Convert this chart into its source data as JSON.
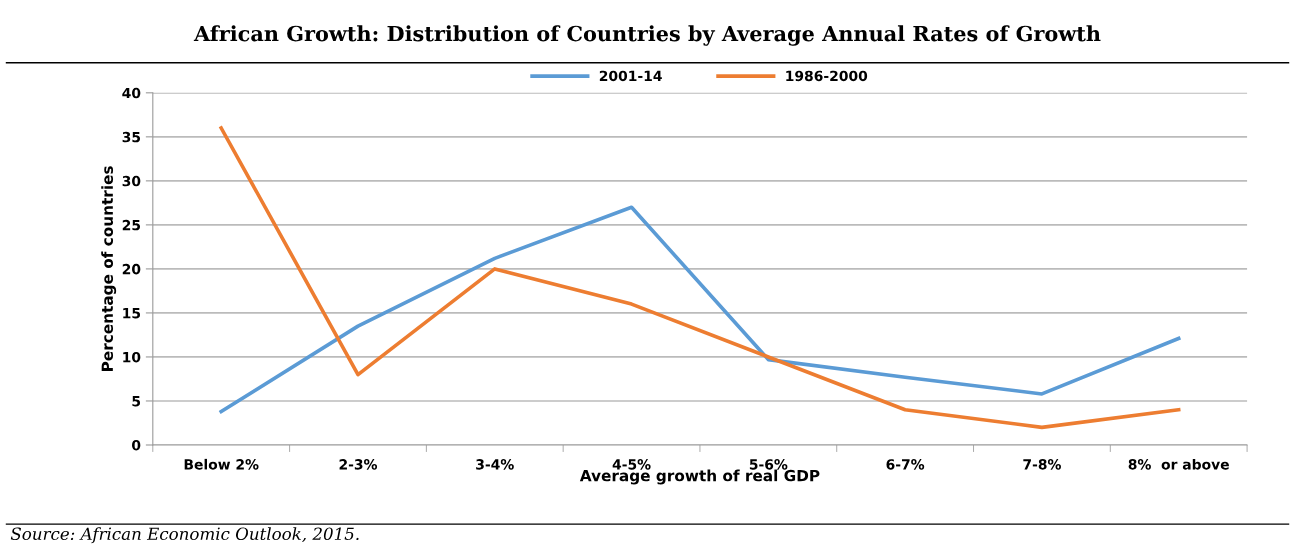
{
  "chart_data": {
    "type": "line",
    "title": "African Growth: Distribution of Countries by Average Annual Rates of Growth",
    "xlabel": "Average growth of real GDP",
    "ylabel": "Percentage of countries",
    "categories": [
      "Below 2%",
      "2-3%",
      "3-4%",
      "4-5%",
      "5-6%",
      "6-7%",
      "7-8%",
      "8%  or above"
    ],
    "series": [
      {
        "name": "2001-14",
        "color": "#5b9bd5",
        "values": [
          3.8,
          13.5,
          21.2,
          27,
          9.7,
          7.7,
          5.8,
          12.1
        ]
      },
      {
        "name": "1986-2000",
        "color": "#ed7d31",
        "values": [
          36,
          8,
          20,
          16,
          10,
          4,
          2,
          4
        ]
      }
    ],
    "ylim": [
      0,
      40
    ],
    "yticks": [
      0,
      5,
      10,
      15,
      20,
      25,
      30,
      35,
      40
    ],
    "grid": "y",
    "legend": "top",
    "marker": "none",
    "line_style": "solid",
    "annotations": [
      "Source: African Economic Outlook, 2015."
    ]
  }
}
